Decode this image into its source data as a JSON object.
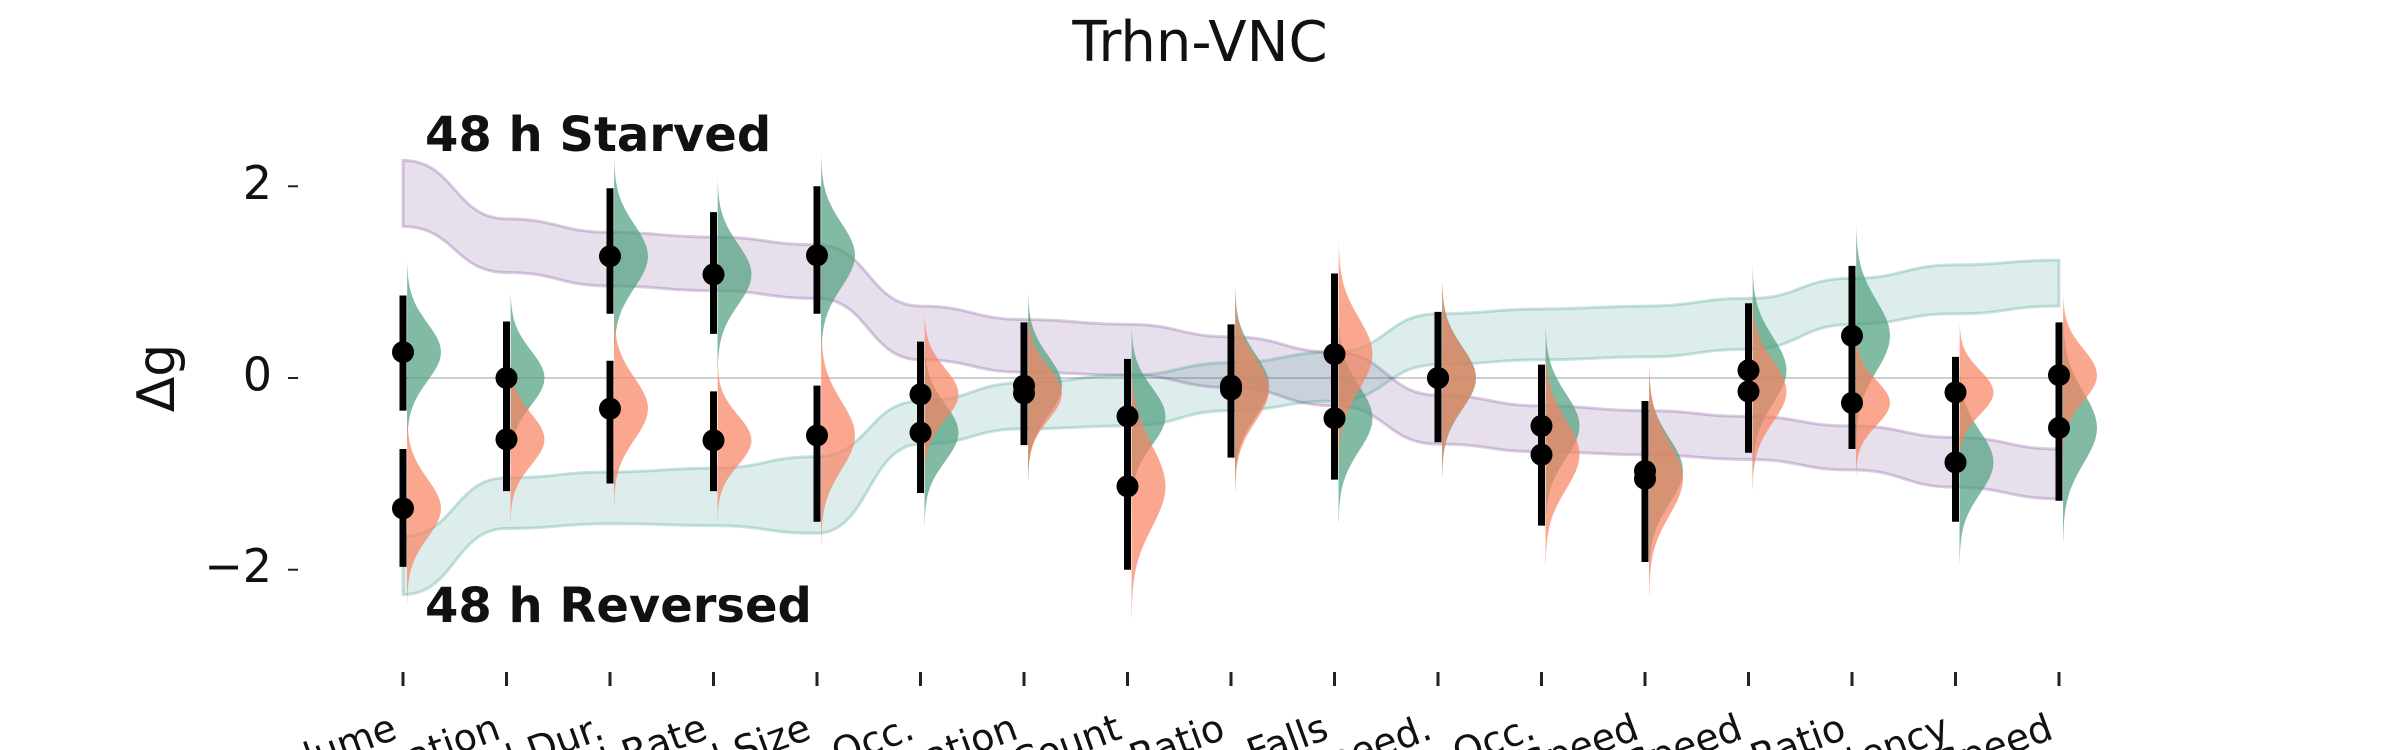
{
  "chart_data": {
    "type": "raincloud",
    "title": "Trhn-VNC",
    "y_label": "Δg",
    "categories": [
      "olume",
      "ation",
      "l Dur.",
      "l Rate",
      "l Size",
      "Occ.",
      "ation",
      "Count",
      "Ratio",
      "Falls",
      "peed.",
      "Occ.",
      "Speed",
      "Speed",
      "Ratio",
      "tency",
      "Speed"
    ],
    "ylim": [
      -2.9,
      2.9
    ],
    "yticks": [
      {
        "value": -2,
        "label": "−2"
      },
      0,
      2
    ],
    "reference_line": 0,
    "series": [
      {
        "color": "#4c9e7c",
        "values": [
          0.27,
          0.0,
          1.27,
          1.08,
          1.28,
          -0.57,
          -0.08,
          -0.4,
          -0.08,
          -0.42,
          0.0,
          -0.5,
          -0.97,
          0.08,
          0.44,
          -0.88,
          -0.52
        ],
        "ci_low": [
          -0.34,
          -0.55,
          0.67,
          0.46,
          0.67,
          -1.2,
          -0.65,
          -1.0,
          -0.75,
          -1.06,
          -0.6,
          -1.2,
          -1.6,
          -0.6,
          -0.3,
          -1.5,
          -1.28
        ],
        "ci_high": [
          0.86,
          0.59,
          1.98,
          1.73,
          2.0,
          0.0,
          0.58,
          0.2,
          0.56,
          0.3,
          0.69,
          0.14,
          -0.24,
          0.78,
          1.17,
          -0.2,
          0.2
        ]
      },
      {
        "color": "#f98160",
        "values": [
          -1.36,
          -0.64,
          -0.32,
          -0.65,
          -0.6,
          -0.17,
          -0.16,
          -1.13,
          -0.12,
          0.25,
          0.0,
          -0.8,
          -1.05,
          -0.14,
          -0.26,
          -0.15,
          0.03
        ],
        "ci_low": [
          -1.97,
          -1.18,
          -1.1,
          -1.18,
          -1.5,
          -0.7,
          -0.7,
          -2.0,
          -0.83,
          -0.4,
          -0.67,
          -1.54,
          -1.92,
          -0.78,
          -0.74,
          -0.7,
          -0.5
        ],
        "ci_high": [
          -0.74,
          -0.1,
          0.18,
          -0.14,
          -0.08,
          0.38,
          0.4,
          -0.3,
          0.5,
          1.09,
          0.6,
          -0.1,
          -0.4,
          0.5,
          0.2,
          0.22,
          0.58
        ]
      }
    ],
    "bands": [
      {
        "name": "48 h Starved",
        "color": "#5c1f7a",
        "upper": [
          2.27,
          1.66,
          1.52,
          1.47,
          1.39,
          0.75,
          0.61,
          0.56,
          0.43,
          0.27,
          -0.18,
          -0.29,
          -0.34,
          -0.4,
          -0.5,
          -0.62,
          -0.74
        ],
        "lower": [
          1.58,
          1.1,
          0.96,
          0.91,
          0.83,
          0.19,
          0.06,
          0.03,
          -0.1,
          -0.29,
          -0.69,
          -0.77,
          -0.8,
          -0.85,
          -0.96,
          -1.14,
          -1.26
        ]
      },
      {
        "name": "48 h Reversed",
        "color": "#0e7f78",
        "upper": [
          -1.65,
          -1.04,
          -0.98,
          -0.94,
          -0.82,
          -0.24,
          -0.05,
          0.03,
          0.16,
          0.27,
          0.67,
          0.72,
          0.75,
          0.83,
          1.04,
          1.18,
          1.23
        ],
        "lower": [
          -2.26,
          -1.57,
          -1.52,
          -1.54,
          -1.62,
          -0.69,
          -0.53,
          -0.5,
          -0.34,
          -0.24,
          0.14,
          0.19,
          0.22,
          0.3,
          0.56,
          0.67,
          0.75
        ]
      }
    ]
  }
}
